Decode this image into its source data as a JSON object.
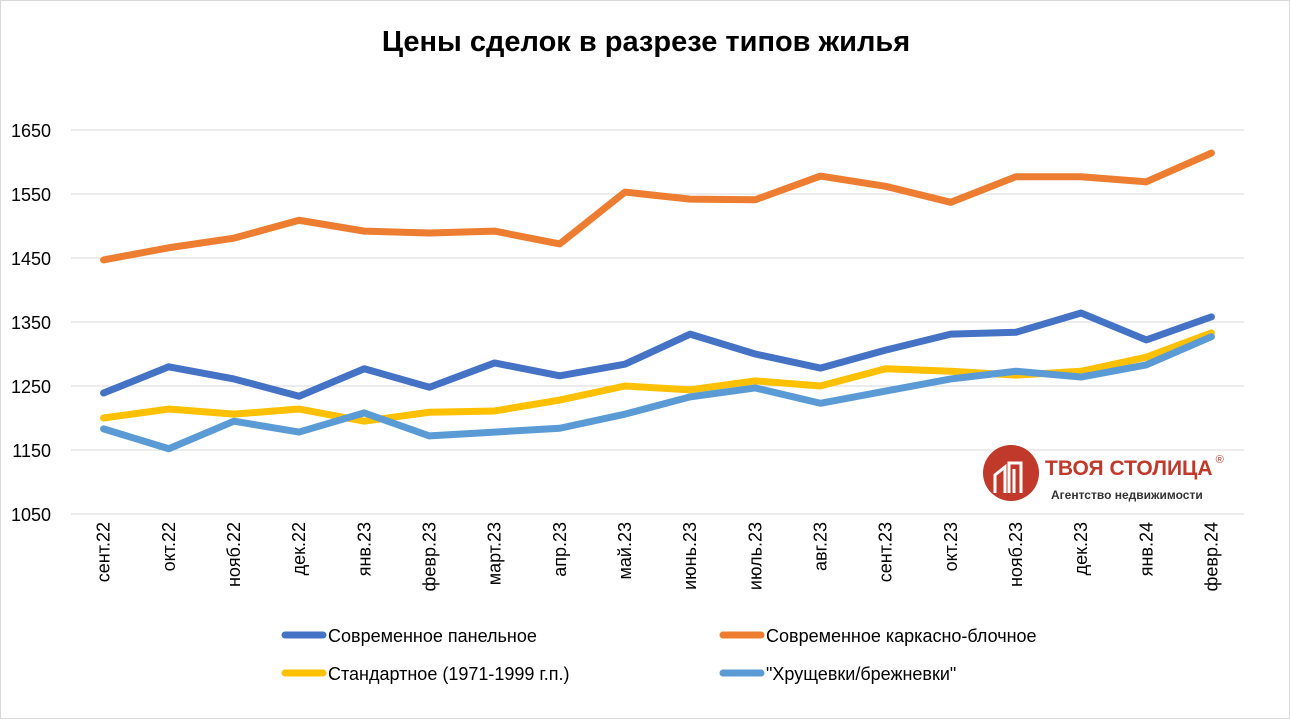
{
  "chart_data": {
    "type": "line",
    "title": "Цены сделок в разрезе типов жилья",
    "xlabel": "",
    "ylabel": "",
    "ylim": [
      1050,
      1650
    ],
    "yticks": [
      1050,
      1150,
      1250,
      1350,
      1450,
      1550,
      1650
    ],
    "grid": true,
    "legend_position": "bottom",
    "categories": [
      "сент.22",
      "окт.22",
      "нояб.22",
      "дек.22",
      "янв.23",
      "февр.23",
      "март.23",
      "апр.23",
      "май.23",
      "июнь.23",
      "июль.23",
      "авг.23",
      "сент.23",
      "окт.23",
      "нояб.23",
      "дек.23",
      "янв.24",
      "февр.24"
    ],
    "series": [
      {
        "name": "Современное панельное",
        "color": "#4472C4",
        "values": [
          1239,
          1280,
          1261,
          1234,
          1277,
          1248,
          1286,
          1266,
          1284,
          1331,
          1300,
          1278,
          1306,
          1331,
          1334,
          1364,
          1322,
          1358
        ]
      },
      {
        "name": "Современное каркасно-блочное",
        "color": "#ED7D31",
        "values": [
          1447,
          1466,
          1481,
          1509,
          1492,
          1489,
          1492,
          1472,
          1553,
          1542,
          1541,
          1578,
          1562,
          1537,
          1577,
          1577,
          1569,
          1614
        ]
      },
      {
        "name": "Стандартное (1971-1999 г.п.)",
        "color": "#FFC000",
        "values": [
          1200,
          1214,
          1206,
          1214,
          1195,
          1209,
          1211,
          1228,
          1250,
          1244,
          1258,
          1250,
          1277,
          1273,
          1267,
          1273,
          1295,
          1333
        ]
      },
      {
        "name": "\"Хрущевки/брежневки\"",
        "color": "#5B9BD5",
        "values": [
          1183,
          1152,
          1195,
          1178,
          1208,
          1172,
          1178,
          1184,
          1206,
          1233,
          1247,
          1223,
          1242,
          1261,
          1273,
          1264,
          1283,
          1327
        ]
      }
    ]
  },
  "logo": {
    "name": "ТВОЯ СТОЛИЦА",
    "registered": "®",
    "tagline": "Агентство недвижимости",
    "color": "#C0392B"
  }
}
